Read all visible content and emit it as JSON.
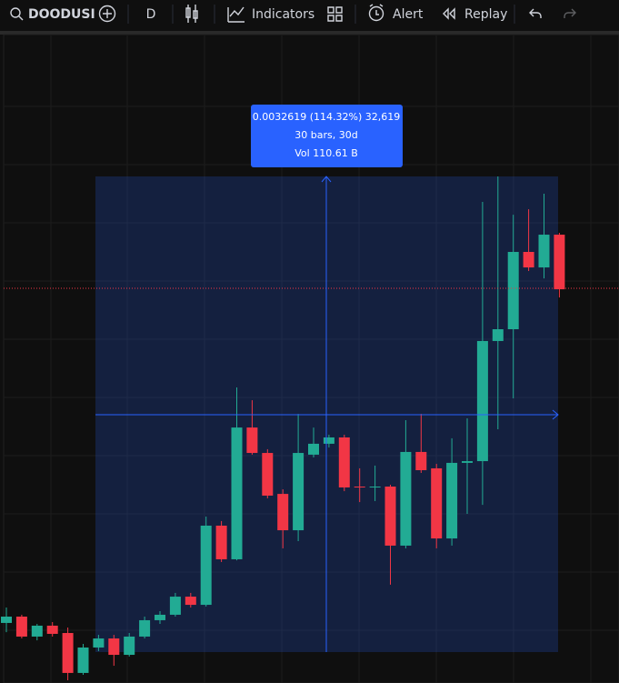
{
  "toolbar": {
    "symbol": "DOODUSI",
    "interval": "D",
    "indicators": "Indicators",
    "alert": "Alert",
    "replay": "Replay"
  },
  "measure": {
    "line1": "0.0032619 (114.32%) 32,619",
    "line2": "30 bars, 30d",
    "line3": "Vol 110.61 B"
  },
  "chart_data": {
    "type": "candlestick",
    "up_color": "#22ab94",
    "down_color": "#f23645",
    "ylim": [
      0.0026,
      0.0071
    ],
    "open": [
      0.003018,
      0.003062,
      0.002923,
      0.002999,
      0.002948,
      0.00267,
      0.002847,
      0.00291,
      0.002796,
      0.002923,
      0.003037,
      0.003075,
      0.003201,
      0.003144,
      0.003695,
      0.003461,
      0.004378,
      0.004201,
      0.003916,
      0.003663,
      0.004189,
      0.004265,
      0.004309,
      0.003967,
      0.003961,
      0.003967,
      0.003556,
      0.004208,
      0.004094,
      0.003606,
      0.004132,
      0.004144,
      0.00498,
      0.005062,
      0.0056,
      0.005492,
      0.00572
    ],
    "high": [
      0.003125,
      0.003075,
      0.003011,
      0.003024,
      0.002986,
      0.002872,
      0.002935,
      0.002935,
      0.002948,
      0.003062,
      0.0031,
      0.003227,
      0.003227,
      0.003758,
      0.003727,
      0.004657,
      0.004568,
      0.004227,
      0.003948,
      0.004473,
      0.004378,
      0.004328,
      0.004328,
      0.004094,
      0.004113,
      0.00398,
      0.004429,
      0.004473,
      0.004125,
      0.004303,
      0.004442,
      0.005948,
      0.006125,
      0.005859,
      0.005897,
      0.006005,
      0.005733
    ],
    "low": [
      0.002954,
      0.00291,
      0.002897,
      0.002923,
      0.002619,
      0.002657,
      0.002822,
      0.00272,
      0.002784,
      0.00291,
      0.003011,
      0.003062,
      0.003125,
      0.003132,
      0.003442,
      0.003454,
      0.004189,
      0.003885,
      0.003537,
      0.003587,
      0.00417,
      0.004239,
      0.003935,
      0.003859,
      0.003866,
      0.003284,
      0.003537,
      0.004062,
      0.003537,
      0.003556,
      0.003777,
      0.00384,
      0.004366,
      0.004581,
      0.005467,
      0.005416,
      0.005283
    ],
    "close": [
      0.003062,
      0.002923,
      0.002999,
      0.002942,
      0.00267,
      0.002847,
      0.00291,
      0.002796,
      0.002923,
      0.003037,
      0.003075,
      0.003201,
      0.003144,
      0.003695,
      0.003461,
      0.004378,
      0.004201,
      0.003904,
      0.003663,
      0.004201,
      0.004265,
      0.004309,
      0.003961,
      0.003961,
      0.003967,
      0.003556,
      0.004208,
      0.004081,
      0.003606,
      0.004132,
      0.004144,
      0.00498,
      0.005062,
      0.0056,
      0.005492,
      0.00572,
      0.00534
    ]
  }
}
